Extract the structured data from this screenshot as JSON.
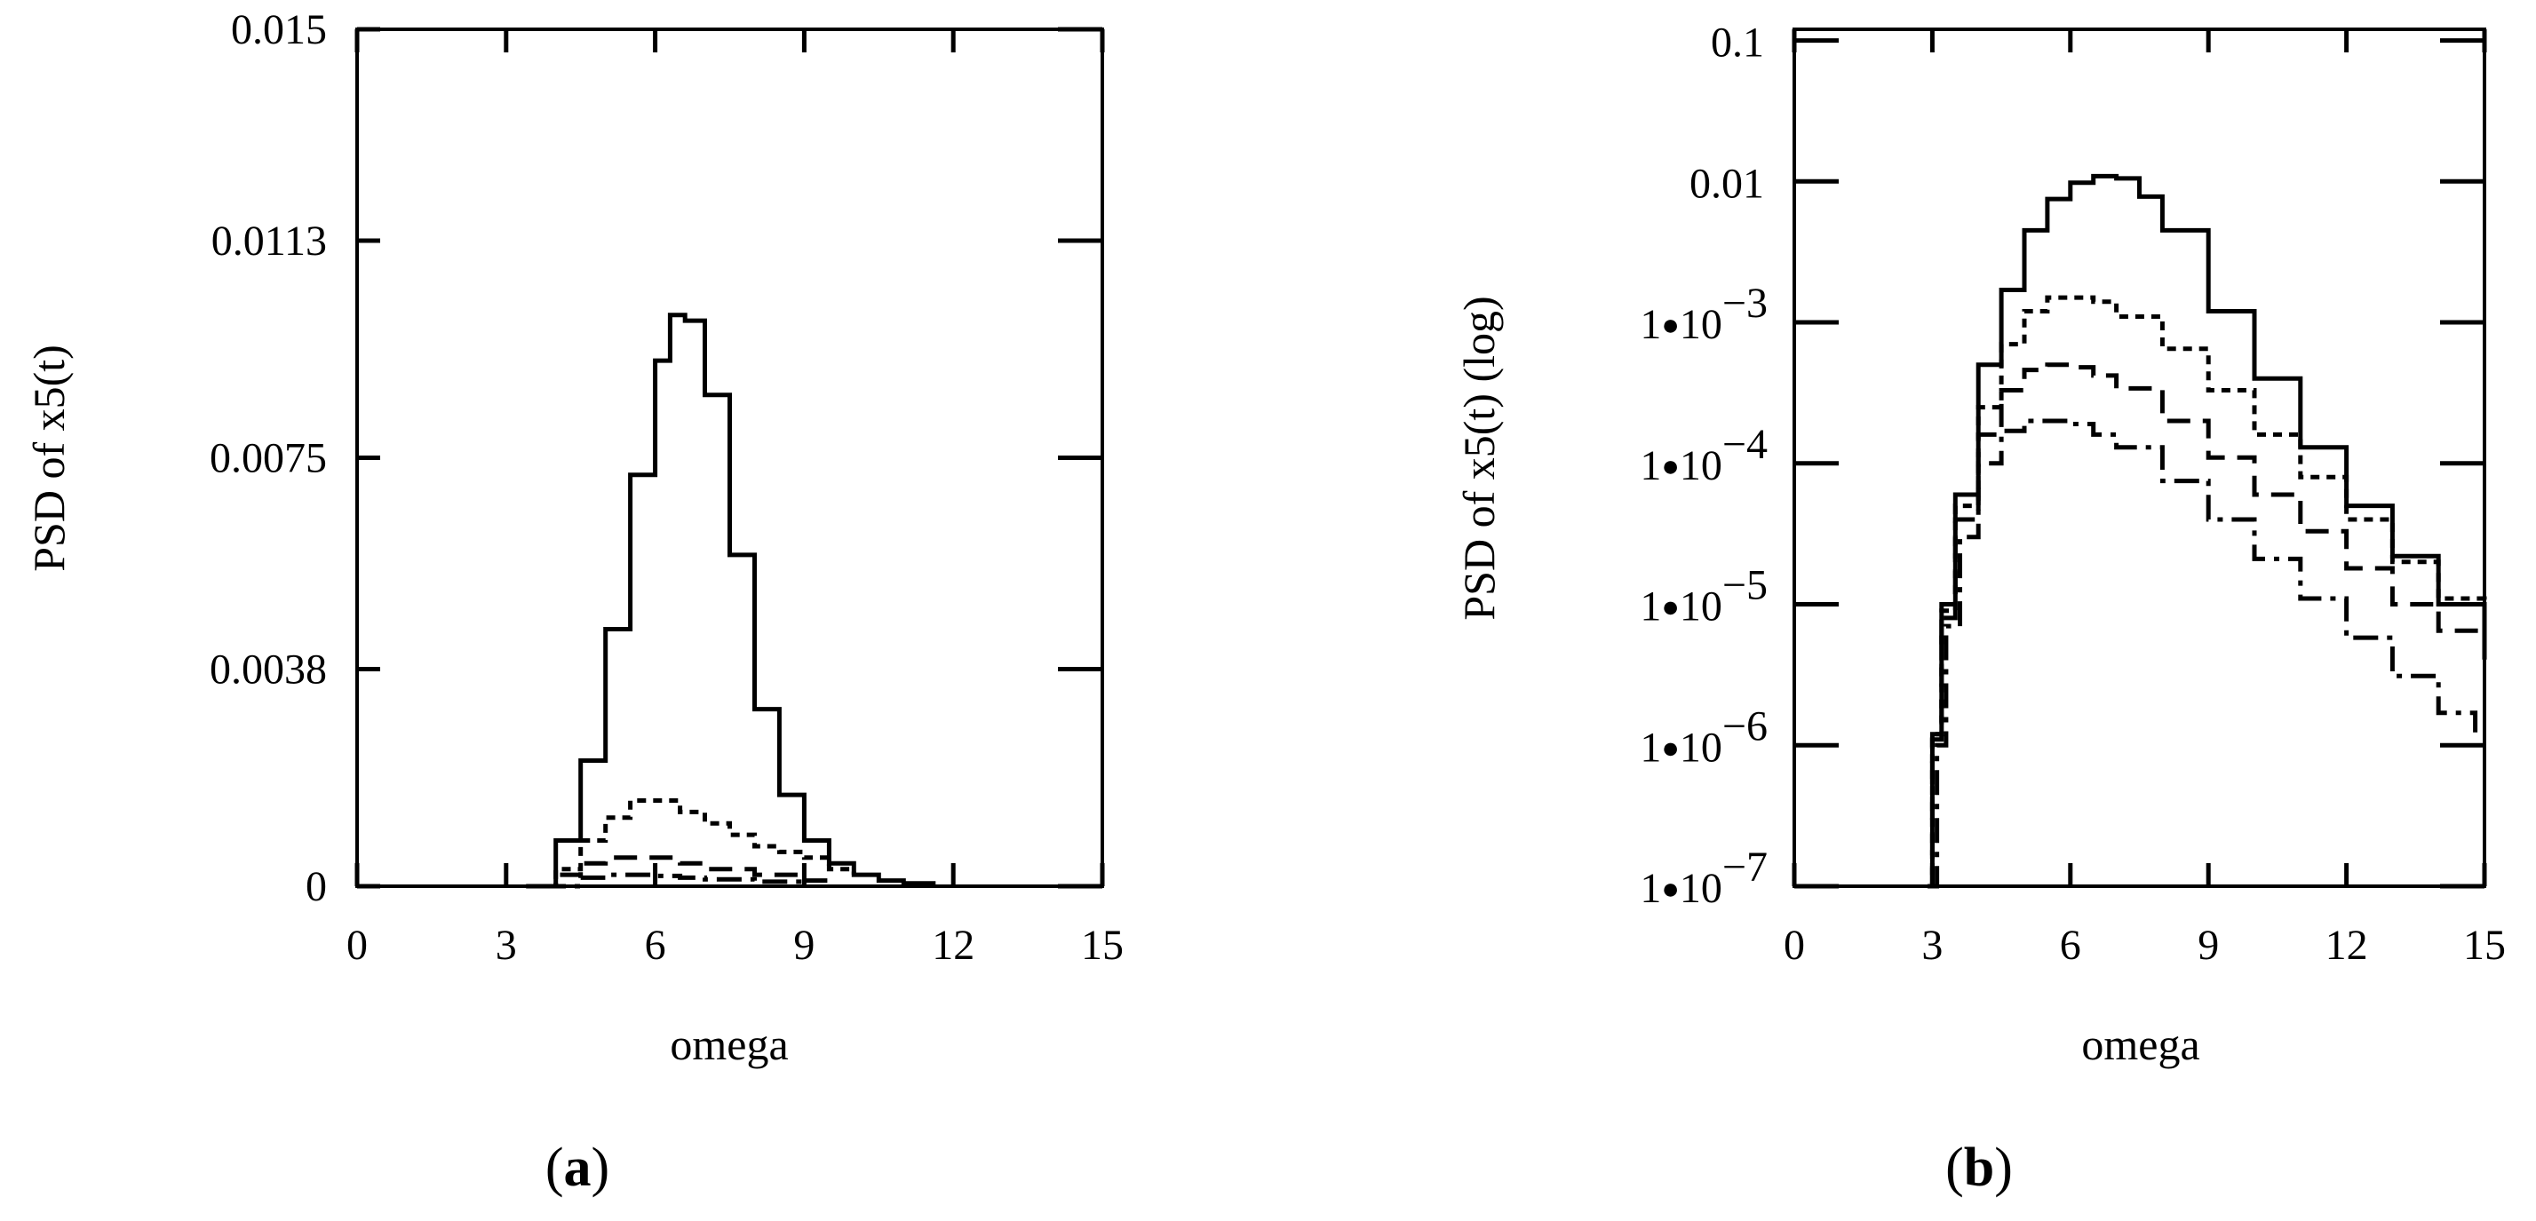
{
  "chart_data": [
    {
      "panel": "(a)",
      "panel_letter": "a",
      "type": "line",
      "xlabel": "omega",
      "ylabel": "PSD of x5(t)",
      "xlim": [
        0,
        15
      ],
      "ylim": [
        0,
        0.015
      ],
      "y_scale": "linear",
      "x_ticks": [
        "0",
        "3",
        "6",
        "9",
        "12",
        "15"
      ],
      "y_ticks": [
        "0",
        "0.0038",
        "0.0075",
        "0.0113",
        "0.015"
      ],
      "grid": false,
      "line_styles": [
        "solid",
        "dotted",
        "dashed",
        "dash-dot"
      ],
      "series": [
        {
          "style": "solid",
          "x": [
            3.4,
            4.0,
            4.5,
            5.0,
            5.5,
            6.0,
            6.3,
            6.6,
            7.0,
            7.5,
            8.0,
            8.5,
            9.0,
            9.5,
            10.0,
            10.5,
            11.0,
            11.6
          ],
          "y": [
            0.0,
            0.0008,
            0.0022,
            0.0045,
            0.0072,
            0.0092,
            0.01,
            0.0099,
            0.0086,
            0.0058,
            0.0031,
            0.0016,
            0.0008,
            0.0004,
            0.0002,
            0.0001,
            5e-05,
            0.0
          ]
        },
        {
          "style": "dotted",
          "x": [
            3.5,
            4.0,
            4.5,
            5.0,
            5.5,
            6.0,
            6.5,
            7.0,
            7.5,
            8.0,
            8.5,
            9.0,
            9.5,
            10.0
          ],
          "y": [
            0.0,
            0.0003,
            0.0008,
            0.0012,
            0.0015,
            0.0015,
            0.0013,
            0.0011,
            0.0009,
            0.0007,
            0.0006,
            0.0005,
            0.0003,
            0.0002
          ]
        },
        {
          "style": "dashed",
          "x": [
            3.6,
            4.0,
            4.5,
            5.0,
            5.5,
            6.0,
            6.5,
            7.0,
            8.0,
            9.0,
            9.5
          ],
          "y": [
            0.0,
            0.0002,
            0.0004,
            0.0005,
            0.0005,
            0.0005,
            0.0004,
            0.0003,
            0.0002,
            0.0001,
            5e-05
          ]
        },
        {
          "style": "dash-dot",
          "x": [
            3.7,
            4.5,
            5.0,
            5.5,
            6.0,
            6.5,
            7.0,
            8.0,
            9.0
          ],
          "y": [
            0.0,
            0.00015,
            0.0002,
            0.0002,
            0.00018,
            0.00015,
            0.00012,
            8e-05,
            4e-05
          ]
        }
      ]
    },
    {
      "panel": "(b)",
      "panel_letter": "b",
      "type": "line",
      "xlabel": "omega",
      "ylabel": "PSD of x5(t) (log)",
      "xlim": [
        0,
        15
      ],
      "ylim": [
        1e-07,
        0.12
      ],
      "y_scale": "log",
      "x_ticks": [
        "0",
        "3",
        "6",
        "9",
        "12",
        "15"
      ],
      "y_ticks_plain": [
        {
          "value": 0.1,
          "label": "0.1"
        },
        {
          "value": 0.01,
          "label": "0.01"
        }
      ],
      "y_ticks_sci": [
        {
          "value": 0.001,
          "mantissa": "1",
          "bullet": "●",
          "base": "10",
          "exponent": "−3"
        },
        {
          "value": 0.0001,
          "mantissa": "1",
          "bullet": "●",
          "base": "10",
          "exponent": "−4"
        },
        {
          "value": 1e-05,
          "mantissa": "1",
          "bullet": "●",
          "base": "10",
          "exponent": "−5"
        },
        {
          "value": 1e-06,
          "mantissa": "1",
          "bullet": "●",
          "base": "10",
          "exponent": "−6"
        },
        {
          "value": 1e-07,
          "mantissa": "1",
          "bullet": "●",
          "base": "10",
          "exponent": "−7"
        }
      ],
      "grid": false,
      "line_styles": [
        "solid",
        "dotted",
        "dashed",
        "dash-dot"
      ],
      "series": [
        {
          "style": "solid",
          "x": [
            2.9,
            3.0,
            3.2,
            3.5,
            4.0,
            4.5,
            5.0,
            5.5,
            6.0,
            6.5,
            7.0,
            7.5,
            8.0,
            9.0,
            10.0,
            11.0,
            12.0,
            13.0,
            14.0,
            15.0
          ],
          "y": [
            1e-07,
            1.2e-06,
            1e-05,
            6e-05,
            0.0005,
            0.0017,
            0.0045,
            0.0075,
            0.0098,
            0.0109,
            0.0105,
            0.0078,
            0.0045,
            0.0012,
            0.0004,
            0.00013,
            5e-05,
            2.2e-05,
            1e-05,
            4.5e-06
          ]
        },
        {
          "style": "dotted",
          "x": [
            2.9,
            3.0,
            3.2,
            3.5,
            4.0,
            4.5,
            5.0,
            5.5,
            6.0,
            6.5,
            7.0,
            8.0,
            9.0,
            10.0,
            11.0,
            12.0,
            13.0,
            14.0,
            15.0
          ],
          "y": [
            1e-07,
            1.2e-06,
            9e-06,
            5e-05,
            0.00025,
            0.0007,
            0.0012,
            0.0015,
            0.0015,
            0.0014,
            0.0011,
            0.00065,
            0.00033,
            0.00016,
            8e-05,
            4e-05,
            2e-05,
            1.1e-05,
            6.5e-06
          ]
        },
        {
          "style": "dashed",
          "x": [
            2.9,
            3.0,
            3.2,
            3.5,
            4.0,
            4.5,
            5.0,
            5.5,
            6.0,
            6.5,
            7.0,
            8.0,
            9.0,
            10.0,
            11.0,
            12.0,
            13.0,
            14.0,
            15.0
          ],
          "y": [
            1e-07,
            1.1e-06,
            8e-06,
            4e-05,
            0.00016,
            0.00033,
            0.00046,
            0.0005,
            0.00048,
            0.00042,
            0.00034,
            0.0002,
            0.00011,
            6e-05,
            3.3e-05,
            1.8e-05,
            1e-05,
            6.5e-06,
            4e-06
          ]
        },
        {
          "style": "dash-dot",
          "x": [
            3.0,
            3.1,
            3.3,
            3.6,
            4.0,
            4.5,
            5.0,
            5.5,
            6.0,
            6.5,
            7.0,
            8.0,
            9.0,
            10.0,
            11.0,
            12.0,
            13.0,
            14.0,
            14.8
          ],
          "y": [
            1e-07,
            1e-06,
            7e-06,
            3e-05,
            0.0001,
            0.00017,
            0.0002,
            0.0002,
            0.00019,
            0.00016,
            0.00013,
            7.5e-05,
            4e-05,
            2.1e-05,
            1.1e-05,
            5.8e-06,
            3.1e-06,
            1.7e-06,
            1.1e-06
          ]
        }
      ]
    }
  ]
}
